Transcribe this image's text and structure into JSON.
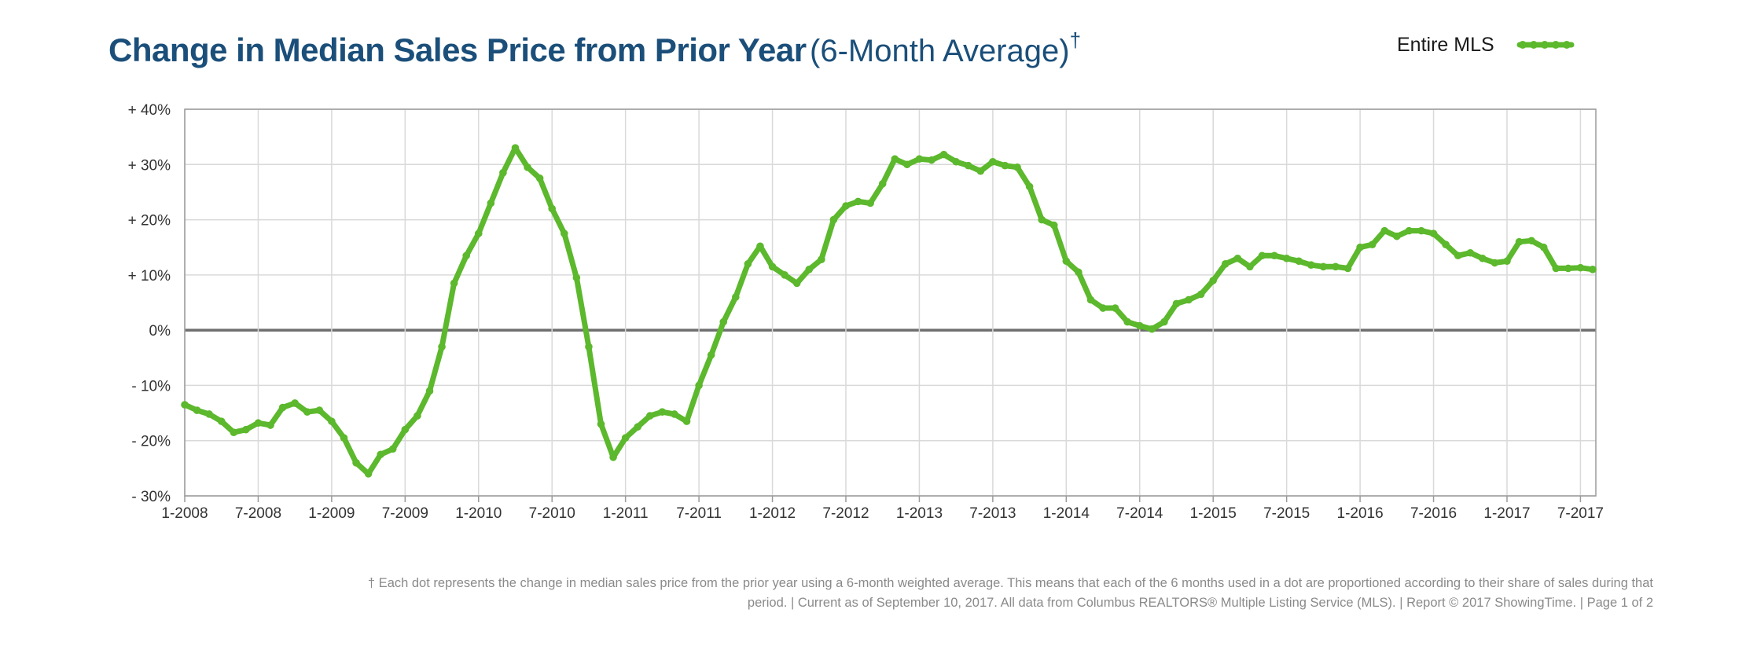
{
  "header": {
    "title_main": "Change in Median Sales Price from Prior Year",
    "title_sub": "(6-Month Average)",
    "title_mark": "†"
  },
  "legend": {
    "label": "Entire MLS",
    "color": "#5cb82c"
  },
  "footnote": {
    "line1": "† Each dot represents the change in median sales price from the prior year using a 6-month weighted average. This means that each of the 6 months used in a dot are proportioned according to their share of sales during that",
    "line2": "period.  |  Current as of September 10, 2017. All data from Columbus REALTORS® Multiple Listing Service (MLS).  |  Report © 2017 ShowingTime.  |   Page 1 of 2"
  },
  "chart_data": {
    "type": "line",
    "title": "Change in Median Sales Price from Prior Year (6-Month Average)",
    "xlabel": "",
    "ylabel": "",
    "ylim": [
      -30,
      40
    ],
    "yticks": [
      40,
      30,
      20,
      10,
      0,
      -10,
      -20,
      -30
    ],
    "ytick_labels": [
      "+ 40%",
      "+ 30%",
      "+ 20%",
      "+ 10%",
      "0%",
      "- 10%",
      "- 20%",
      "- 30%"
    ],
    "xticks": [
      "1-2008",
      "7-2008",
      "1-2009",
      "7-2009",
      "1-2010",
      "7-2010",
      "1-2011",
      "7-2011",
      "1-2012",
      "7-2012",
      "1-2013",
      "7-2013",
      "1-2014",
      "7-2014",
      "1-2015",
      "7-2015",
      "1-2016",
      "7-2016",
      "1-2017",
      "7-2017"
    ],
    "x_start": "1-2008",
    "x_end": "9-2017",
    "grid": true,
    "zero_line": true,
    "legend_position": "top-right",
    "series": [
      {
        "name": "Entire MLS",
        "color": "#5cb82c",
        "values": [
          -13.5,
          -14.5,
          -15.2,
          -16.5,
          -18.5,
          -18.0,
          -16.8,
          -17.2,
          -14.0,
          -13.2,
          -14.8,
          -14.5,
          -16.5,
          -19.5,
          -24.0,
          -26.0,
          -22.5,
          -21.5,
          -18.0,
          -15.5,
          -11.0,
          -3.0,
          8.5,
          13.5,
          17.5,
          23.0,
          28.5,
          33.0,
          29.5,
          27.5,
          22.0,
          17.5,
          9.5,
          -3.0,
          -17.0,
          -23.0,
          -19.5,
          -17.5,
          -15.5,
          -14.8,
          -15.2,
          -16.5,
          -10.0,
          -4.5,
          1.5,
          6.0,
          12.0,
          15.2,
          11.5,
          10.0,
          8.5,
          11.0,
          12.8,
          20.0,
          22.5,
          23.3,
          23.0,
          26.5,
          31.0,
          30.0,
          31.0,
          30.8,
          31.8,
          30.5,
          29.8,
          28.8,
          30.5,
          29.8,
          29.5,
          26.0,
          20.0,
          19.0,
          12.5,
          10.5,
          5.5,
          4.0,
          4.0,
          1.5,
          0.8,
          0.2,
          1.5,
          4.8,
          5.5,
          6.5,
          9.0,
          12.0,
          13.0,
          11.5,
          13.5,
          13.5,
          13.0,
          12.5,
          11.8,
          11.5,
          11.5,
          11.2,
          15.0,
          15.5,
          18.0,
          17.0,
          18.0,
          18.0,
          17.5,
          15.5,
          13.5,
          14.0,
          13.0,
          12.2,
          12.5,
          16.0,
          16.2,
          15.0,
          11.2,
          11.2,
          11.3,
          11.0
        ]
      }
    ]
  }
}
